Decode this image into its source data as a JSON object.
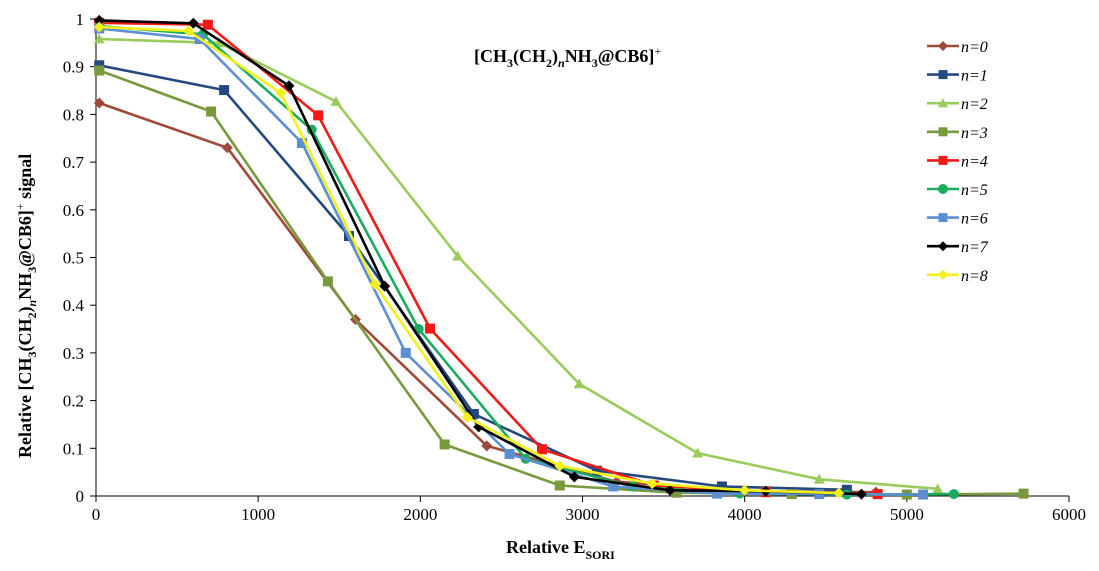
{
  "chart_data": {
    "type": "line",
    "title_parts": {
      "p1": "[CH",
      "s1": "3",
      "p2": "(CH",
      "s2": "2",
      "p3": ")",
      "s3": "n",
      "p4": "NH",
      "s4": "3",
      "p5": "@CB6]",
      "sup": "+"
    },
    "xlabel_parts": {
      "main": "Relative E",
      "sub": "SORI"
    },
    "ylabel_parts": {
      "p1": "Relative [CH",
      "s1": "3",
      "p2": "(CH",
      "s2": "2",
      "p3": ")",
      "s3": "n",
      "p4": "NH",
      "s4": "3",
      "p5": "@CB6]",
      "sup": "+",
      "p6": " signal"
    },
    "xlim": [
      0,
      6000
    ],
    "ylim": [
      0,
      1
    ],
    "xticks": [
      "0",
      "1000",
      "2000",
      "3000",
      "4000",
      "5000",
      "6000"
    ],
    "yticks": [
      "0",
      "0.1",
      "0.2",
      "0.3",
      "0.4",
      "0.5",
      "0.6",
      "0.7",
      "0.8",
      "0.9",
      "1"
    ],
    "grid": false,
    "legend_position": "right",
    "series": [
      {
        "name": "n=0",
        "color": "#A0483A",
        "marker": "diamond",
        "points": [
          [
            20,
            0.824
          ],
          [
            810,
            0.73
          ],
          [
            1600,
            0.37
          ],
          [
            2410,
            0.105
          ],
          [
            3210,
            0.03
          ],
          [
            4010,
            0.01
          ],
          [
            4810,
            0.008
          ]
        ]
      },
      {
        "name": "n=1",
        "color": "#24497E",
        "marker": "square",
        "points": [
          [
            20,
            0.903
          ],
          [
            790,
            0.851
          ],
          [
            1560,
            0.545
          ],
          [
            2330,
            0.172
          ],
          [
            3090,
            0.053
          ],
          [
            3860,
            0.02
          ],
          [
            4630,
            0.013
          ]
        ]
      },
      {
        "name": "n=2",
        "color": "#9BCB5A",
        "marker": "triangle",
        "points": [
          [
            20,
            0.958
          ],
          [
            760,
            0.95
          ],
          [
            1480,
            0.827
          ],
          [
            2230,
            0.503
          ],
          [
            2980,
            0.235
          ],
          [
            3710,
            0.09
          ],
          [
            4460,
            0.035
          ],
          [
            5190,
            0.015
          ]
        ]
      },
      {
        "name": "n=3",
        "color": "#789A3C",
        "marker": "square",
        "points": [
          [
            20,
            0.892
          ],
          [
            710,
            0.806
          ],
          [
            1430,
            0.45
          ],
          [
            2150,
            0.108
          ],
          [
            2860,
            0.022
          ],
          [
            3580,
            0.007
          ],
          [
            4290,
            0.004
          ],
          [
            5000,
            0.003
          ],
          [
            5720,
            0.005
          ]
        ]
      },
      {
        "name": "n=4",
        "color": "#F01B16",
        "marker": "square",
        "points": [
          [
            20,
            0.992
          ],
          [
            690,
            0.988
          ],
          [
            1370,
            0.798
          ],
          [
            2060,
            0.351
          ],
          [
            2750,
            0.098
          ],
          [
            3440,
            0.022
          ],
          [
            4130,
            0.008
          ],
          [
            4820,
            0.004
          ]
        ]
      },
      {
        "name": "n=5",
        "color": "#1AAB5E",
        "marker": "circle",
        "points": [
          [
            20,
            0.985
          ],
          [
            660,
            0.968
          ],
          [
            1330,
            0.768
          ],
          [
            1990,
            0.35
          ],
          [
            2650,
            0.078
          ],
          [
            3310,
            0.02
          ],
          [
            3970,
            0.005
          ],
          [
            4630,
            0.003
          ],
          [
            5290,
            0.004
          ]
        ]
      },
      {
        "name": "n=6",
        "color": "#5C8FD1",
        "marker": "square",
        "points": [
          [
            20,
            0.98
          ],
          [
            640,
            0.958
          ],
          [
            1270,
            0.74
          ],
          [
            1910,
            0.3
          ],
          [
            2550,
            0.088
          ],
          [
            3190,
            0.02
          ],
          [
            3830,
            0.005
          ],
          [
            4460,
            0.004
          ],
          [
            5100,
            0.003
          ]
        ]
      },
      {
        "name": "n=7",
        "color": "#000000",
        "marker": "diamond",
        "points": [
          [
            20,
            0.997
          ],
          [
            600,
            0.991
          ],
          [
            1190,
            0.86
          ],
          [
            1780,
            0.44
          ],
          [
            2360,
            0.145
          ],
          [
            2950,
            0.04
          ],
          [
            3540,
            0.012
          ],
          [
            4130,
            0.01
          ],
          [
            4720,
            0.004
          ]
        ]
      },
      {
        "name": "n=8",
        "color": "#F2F01B",
        "marker": "diamond",
        "points": [
          [
            20,
            0.983
          ],
          [
            570,
            0.975
          ],
          [
            1140,
            0.845
          ],
          [
            1720,
            0.444
          ],
          [
            2290,
            0.165
          ],
          [
            2860,
            0.063
          ],
          [
            3430,
            0.026
          ],
          [
            4000,
            0.012
          ],
          [
            4580,
            0.006
          ]
        ]
      }
    ]
  }
}
